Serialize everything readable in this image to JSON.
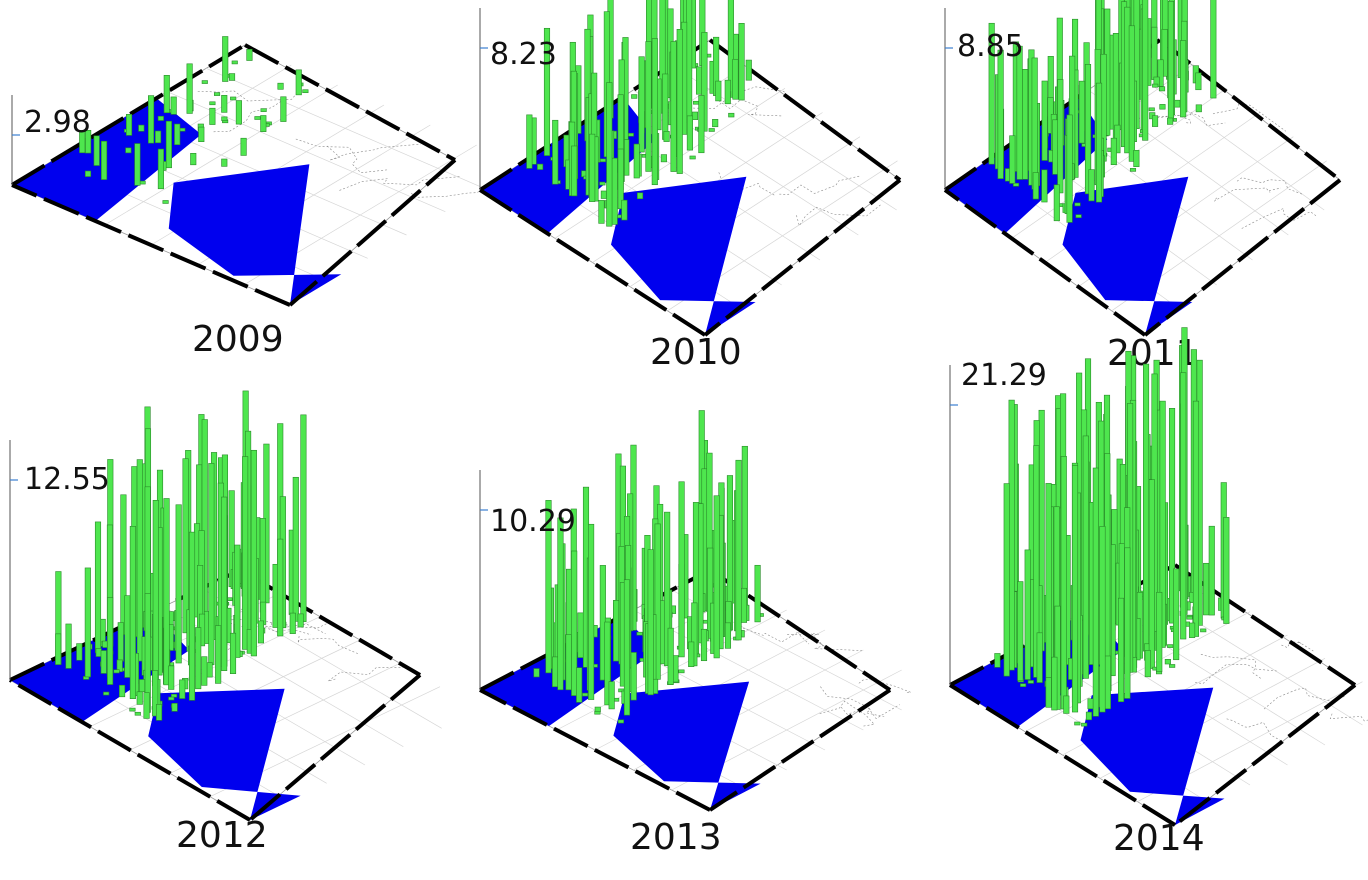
{
  "chart_data": [
    {
      "type": "bar",
      "title": "2009",
      "zmax_label": "2.98",
      "zmax": 2.98,
      "bar_color": "#4ee64e",
      "sea_color": "#0000ee",
      "seed": 11,
      "count": 55,
      "scale": 0.62
    },
    {
      "type": "bar",
      "title": "2010",
      "zmax_label": "8.23",
      "zmax": 8.23,
      "bar_color": "#4ee64e",
      "sea_color": "#0000ee",
      "seed": 23,
      "count": 130,
      "scale": 0.9
    },
    {
      "type": "bar",
      "title": "2011",
      "zmax_label": "8.85",
      "zmax": 8.85,
      "bar_color": "#4ee64e",
      "sea_color": "#0000ee",
      "seed": 37,
      "count": 150,
      "scale": 0.92
    },
    {
      "type": "bar",
      "title": "2012",
      "zmax_label": "12.55",
      "zmax": 12.55,
      "bar_color": "#4ee64e",
      "sea_color": "#0000ee",
      "seed": 41,
      "count": 170,
      "scale": 1.0
    },
    {
      "type": "bar",
      "title": "2013",
      "zmax_label": "10.29",
      "zmax": 10.29,
      "bar_color": "#4ee64e",
      "sea_color": "#0000ee",
      "seed": 53,
      "count": 160,
      "scale": 0.95
    },
    {
      "type": "bar",
      "title": "2014",
      "zmax_label": "21.29",
      "zmax": 21.29,
      "bar_color": "#4ee64e",
      "sea_color": "#0000ee",
      "seed": 67,
      "count": 190,
      "scale": 1.0
    }
  ]
}
